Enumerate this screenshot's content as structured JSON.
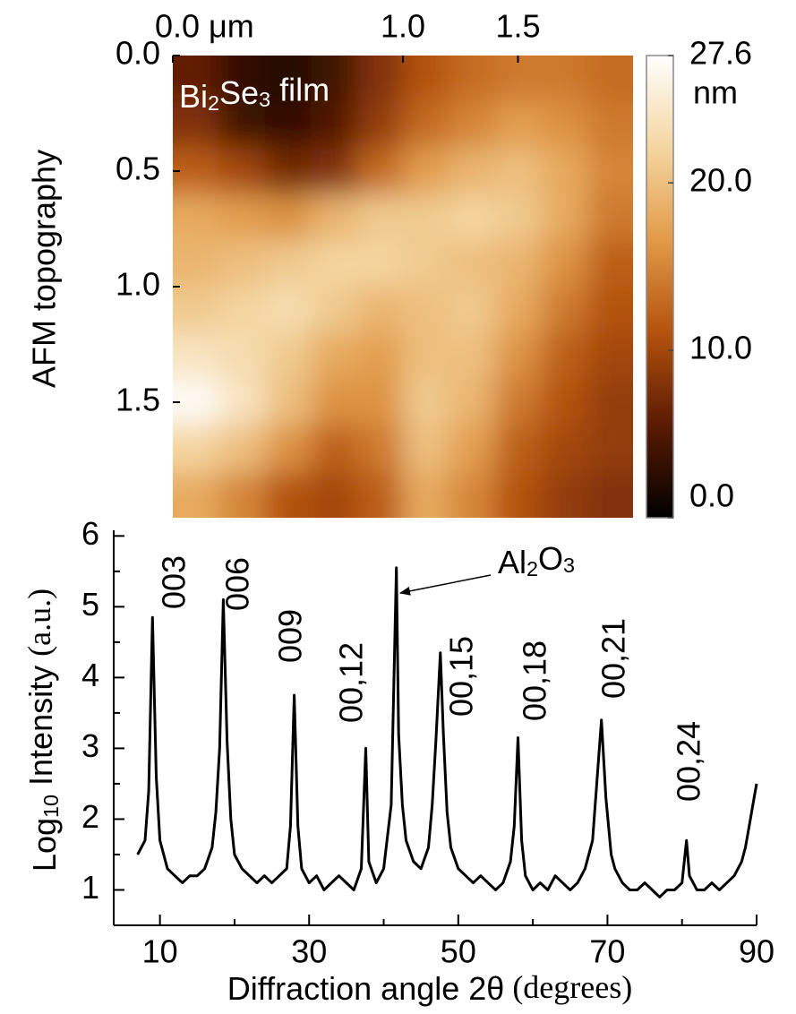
{
  "chart_data": [
    {
      "type": "heatmap",
      "ylabel": "AFM topography",
      "annotation": [
        "Bi",
        "2",
        "Se",
        "3",
        " film"
      ],
      "xlim": [
        0,
        2.0
      ],
      "ylim": [
        0,
        2.0
      ],
      "xticks": [
        {
          "value": 0,
          "label": "0.0 μm"
        },
        {
          "value": 1.0,
          "label": "1.0"
        },
        {
          "value": 1.5,
          "label": "1.5"
        }
      ],
      "yticks": [
        {
          "value": 0,
          "label": "0.0"
        },
        {
          "value": 0.5,
          "label": "0.5"
        },
        {
          "value": 1.0,
          "label": "1.0"
        },
        {
          "value": 1.5,
          "label": "1.5"
        }
      ],
      "values": [
        [
          6,
          3,
          2,
          4,
          8,
          11,
          13,
          14,
          14,
          13
        ],
        [
          8,
          4,
          3,
          5,
          9,
          13,
          15,
          17,
          16,
          14
        ],
        [
          12,
          10,
          7,
          8,
          13,
          17,
          19,
          20,
          18,
          15
        ],
        [
          18,
          17,
          16,
          19,
          21,
          21,
          22,
          21,
          18,
          14
        ],
        [
          19,
          20,
          21,
          22,
          22,
          21,
          20,
          19,
          16,
          12
        ],
        [
          21,
          22,
          23,
          21,
          19,
          20,
          21,
          18,
          14,
          11
        ],
        [
          24,
          23,
          21,
          18,
          17,
          20,
          20,
          16,
          12,
          10
        ],
        [
          27,
          24,
          20,
          16,
          16,
          21,
          19,
          14,
          11,
          9
        ],
        [
          22,
          20,
          16,
          12,
          14,
          20,
          17,
          12,
          10,
          9
        ],
        [
          18,
          15,
          11,
          10,
          12,
          18,
          15,
          11,
          9,
          8
        ]
      ],
      "colormap": [
        "#000000",
        "#5a1a02",
        "#b4520e",
        "#e29a48",
        "#f4d6a0",
        "#ffffff"
      ],
      "colorbar": {
        "lim": [
          0,
          27.6
        ],
        "unit": "nm",
        "ticks": [
          {
            "value": 0,
            "label": "0.0"
          },
          {
            "value": 10,
            "label": "10.0"
          },
          {
            "value": 20,
            "label": "20.0"
          },
          {
            "value": 27.6,
            "label": "27.6"
          }
        ]
      }
    },
    {
      "type": "line",
      "xlabel": [
        "Diffraction angle 2θ",
        " (degrees)"
      ],
      "ylabel": [
        "Log",
        "10",
        " Intensity ",
        "(a.u.)"
      ],
      "xlim": [
        3.8,
        90
      ],
      "ylim": [
        0.5,
        6.08
      ],
      "xticks": [
        10,
        30,
        50,
        70,
        90
      ],
      "xminorticks": [
        20,
        40,
        60,
        80
      ],
      "yticks": [
        1,
        2,
        3,
        4,
        5,
        6
      ],
      "yminorticks": [
        1.5,
        2.5,
        3.5,
        4.5,
        5.5
      ],
      "annotations": [
        "003",
        "006",
        "009",
        "00,12",
        "00,15",
        "00,18",
        "00,21",
        "00,24"
      ],
      "arrow_label": [
        "Al",
        "2",
        "O",
        "3"
      ],
      "x": [
        7,
        8,
        8.5,
        9,
        9.5,
        10,
        11,
        12,
        13,
        14,
        15,
        16,
        17,
        17.5,
        18,
        18.5,
        19,
        19.5,
        20,
        21,
        22,
        23,
        24,
        25,
        26,
        27,
        27.5,
        28,
        28.5,
        29,
        30,
        31,
        32,
        33,
        34,
        35,
        36,
        37,
        37.6,
        38,
        39,
        40,
        41,
        41.7,
        42,
        42.5,
        43,
        44,
        45,
        46,
        46.5,
        47,
        47.6,
        48,
        48.5,
        49,
        50,
        51,
        52,
        53,
        54,
        55,
        56,
        57,
        57.5,
        58,
        58.5,
        59,
        60,
        61,
        62,
        63,
        64,
        65,
        66,
        67,
        68,
        68.5,
        69.2,
        69.8,
        70.5,
        71,
        72,
        73,
        74,
        75,
        76,
        77,
        78,
        79,
        80,
        80.6,
        81,
        82,
        83,
        84,
        85,
        86,
        87,
        88,
        88.5,
        89,
        89.5,
        90
      ],
      "series": [
        {
          "color": "#000000",
          "values": [
            1.5,
            1.7,
            2.4,
            4.85,
            2.6,
            1.7,
            1.3,
            1.2,
            1.1,
            1.2,
            1.2,
            1.3,
            1.6,
            2.1,
            3.0,
            5.1,
            3.1,
            2.0,
            1.5,
            1.3,
            1.2,
            1.1,
            1.2,
            1.1,
            1.2,
            1.3,
            1.9,
            3.75,
            1.9,
            1.3,
            1.1,
            1.2,
            1.0,
            1.1,
            1.2,
            1.1,
            1.0,
            1.3,
            3.0,
            1.4,
            1.1,
            1.3,
            2.2,
            5.55,
            3.2,
            2.2,
            1.7,
            1.4,
            1.3,
            1.6,
            2.2,
            3.1,
            4.35,
            3.2,
            2.1,
            1.6,
            1.3,
            1.2,
            1.1,
            1.2,
            1.1,
            1.0,
            1.1,
            1.4,
            1.9,
            3.15,
            1.7,
            1.2,
            1.0,
            1.1,
            1.0,
            1.2,
            1.1,
            1.0,
            1.1,
            1.3,
            1.7,
            2.4,
            3.4,
            2.3,
            1.5,
            1.3,
            1.1,
            1.0,
            1.0,
            1.1,
            1.0,
            0.9,
            1.0,
            1.0,
            1.1,
            1.7,
            1.2,
            1.0,
            1.0,
            1.1,
            1.0,
            1.1,
            1.2,
            1.4,
            1.6,
            1.9,
            2.2,
            2.5
          ]
        }
      ]
    }
  ]
}
